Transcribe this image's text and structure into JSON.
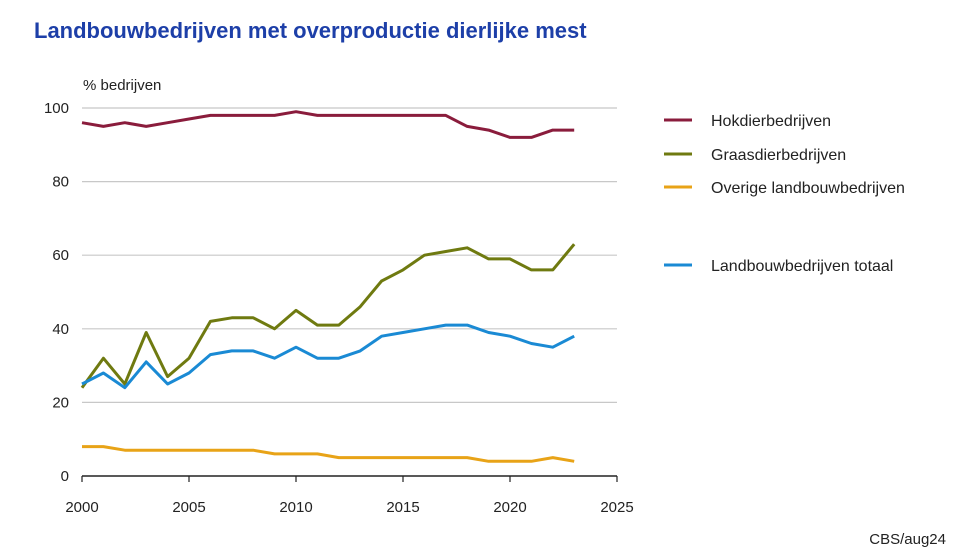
{
  "title": "Landbouwbedrijven met overproductie dierlijke mest",
  "source": "CBS/aug24",
  "chart_data": {
    "type": "line",
    "ylabel": "% bedrijven",
    "xlabel": "",
    "xlim": [
      2000,
      2025
    ],
    "ylim": [
      0,
      100
    ],
    "xticks": [
      2000,
      2005,
      2010,
      2015,
      2020,
      2025
    ],
    "yticks": [
      0,
      20,
      40,
      60,
      80,
      100
    ],
    "grid": "horizontal",
    "legend_position": "right",
    "x": [
      2000,
      2001,
      2002,
      2003,
      2004,
      2005,
      2006,
      2007,
      2008,
      2009,
      2010,
      2011,
      2012,
      2013,
      2014,
      2015,
      2016,
      2017,
      2018,
      2019,
      2020,
      2021,
      2022,
      2023
    ],
    "series": [
      {
        "name": "Hokdierbedrijven",
        "color": "#8a1c3c",
        "values": [
          96,
          95,
          96,
          95,
          96,
          97,
          98,
          98,
          98,
          98,
          99,
          98,
          98,
          98,
          98,
          98,
          98,
          98,
          95,
          94,
          92,
          92,
          94,
          94
        ]
      },
      {
        "name": "Graasdierbedrijven",
        "color": "#6f7a10",
        "values": [
          24,
          32,
          25,
          39,
          27,
          32,
          42,
          43,
          43,
          40,
          45,
          41,
          41,
          46,
          53,
          56,
          60,
          61,
          62,
          59,
          59,
          56,
          56,
          63
        ]
      },
      {
        "name": "Overige landbouwbedrijven",
        "color": "#e8a317",
        "values": [
          8,
          8,
          7,
          7,
          7,
          7,
          7,
          7,
          7,
          6,
          6,
          6,
          5,
          5,
          5,
          5,
          5,
          5,
          5,
          4,
          4,
          4,
          5,
          4
        ]
      },
      {
        "name": "Landbouwbedrijven totaal",
        "color": "#1a8ad4",
        "values": [
          25,
          28,
          24,
          31,
          25,
          28,
          33,
          34,
          34,
          32,
          35,
          32,
          32,
          34,
          38,
          39,
          40,
          41,
          41,
          39,
          38,
          36,
          35,
          38
        ]
      }
    ]
  }
}
